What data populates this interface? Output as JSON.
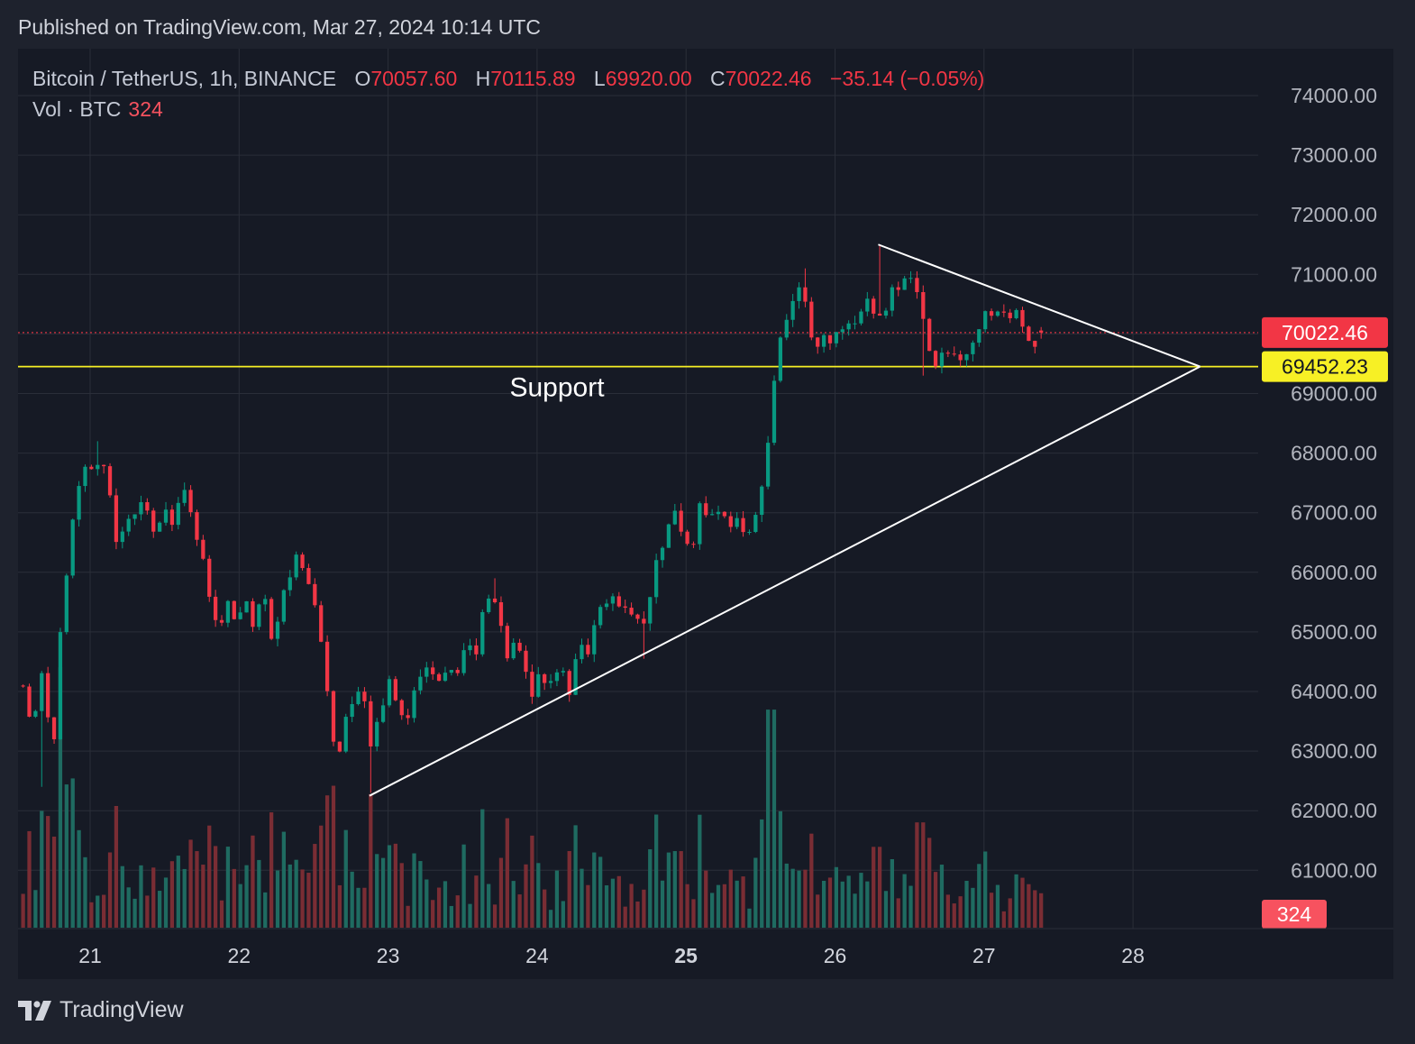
{
  "header": {
    "published_text": "Published on TradingView.com, Mar 27, 2024 10:14 UTC"
  },
  "legend": {
    "symbol": "Bitcoin / TetherUS, 1h, BINANCE",
    "open_label": "O",
    "open": "70057.60",
    "high_label": "H",
    "high": "70115.89",
    "low_label": "L",
    "low": "69920.00",
    "close_label": "C",
    "close": "70022.46",
    "change": "−35.14 (−0.05%)",
    "volume_label": "Vol · BTC",
    "volume": "324"
  },
  "footer": {
    "brand": "TradingView",
    "logo_icon": "tradingview-logo-icon"
  },
  "colors": {
    "background": "#161a25",
    "page": "#1e222d",
    "grid": "#2a2e39",
    "up": "#089981",
    "down": "#f23645",
    "support": "#f7f025",
    "trendline": "#ffffff"
  },
  "chart_data": {
    "type": "candlestick",
    "symbol": "Bitcoin / TetherUS",
    "interval": "1h",
    "exchange": "BINANCE",
    "y_ticks": [
      "74000.00",
      "73000.00",
      "72000.00",
      "71000.00",
      "70000.00",
      "69000.00",
      "68000.00",
      "67000.00",
      "66000.00",
      "65000.00",
      "64000.00",
      "63000.00",
      "62000.00",
      "61000.00"
    ],
    "y_tick_values": [
      74000,
      73000,
      72000,
      71000,
      70000,
      69000,
      68000,
      67000,
      66000,
      65000,
      64000,
      63000,
      62000,
      61000
    ],
    "ylim": [
      60000,
      74500
    ],
    "x_ticks": [
      "21",
      "22",
      "23",
      "24",
      "25",
      "26",
      "27",
      "28"
    ],
    "x_tick_days": [
      21,
      22,
      23,
      24,
      25,
      26,
      27,
      28
    ],
    "bold_x_tick": "25",
    "month": "2024-03",
    "xlim": [
      20.52,
      28.73
    ],
    "last_price": "70022.46",
    "last_price_value": 70022.46,
    "support_price": "69452.23",
    "support_value": 69452.23,
    "support_label": "Support",
    "last_volume": "324",
    "trendlines": [
      {
        "role": "ascending",
        "from": {
          "day": 22.875,
          "price": 62250
        },
        "to": {
          "day": 28.45,
          "price": 69452.23
        }
      },
      {
        "role": "descending",
        "from": {
          "day": 26.29,
          "price": 71500
        },
        "to": {
          "day": 28.45,
          "price": 69452.23
        }
      }
    ],
    "anchors": [
      [
        20.55,
        64100
      ],
      [
        20.62,
        63400
      ],
      [
        20.68,
        64300
      ],
      [
        20.75,
        62900
      ],
      [
        20.8,
        65000
      ],
      [
        20.85,
        66200
      ],
      [
        20.9,
        67300
      ],
      [
        20.95,
        67800
      ],
      [
        21.0,
        67600
      ],
      [
        21.06,
        67900
      ],
      [
        21.12,
        67500
      ],
      [
        21.17,
        66400
      ],
      [
        21.22,
        66800
      ],
      [
        21.3,
        66900
      ],
      [
        21.36,
        67200
      ],
      [
        21.42,
        66700
      ],
      [
        21.5,
        67100
      ],
      [
        21.55,
        66800
      ],
      [
        21.62,
        67400
      ],
      [
        21.68,
        66900
      ],
      [
        21.74,
        66400
      ],
      [
        21.8,
        65600
      ],
      [
        21.86,
        64900
      ],
      [
        21.92,
        65500
      ],
      [
        21.98,
        65000
      ],
      [
        22.04,
        65500
      ],
      [
        22.1,
        65000
      ],
      [
        22.16,
        65700
      ],
      [
        22.22,
        64800
      ],
      [
        22.28,
        65400
      ],
      [
        22.34,
        66000
      ],
      [
        22.4,
        66300
      ],
      [
        22.46,
        65900
      ],
      [
        22.52,
        65300
      ],
      [
        22.58,
        64200
      ],
      [
        22.62,
        63400
      ],
      [
        22.66,
        62800
      ],
      [
        22.72,
        63600
      ],
      [
        22.78,
        63900
      ],
      [
        22.83,
        64000
      ],
      [
        22.88,
        63000
      ],
      [
        22.95,
        63700
      ],
      [
        23.0,
        64200
      ],
      [
        23.06,
        63900
      ],
      [
        23.12,
        63500
      ],
      [
        23.18,
        64100
      ],
      [
        23.25,
        64500
      ],
      [
        23.32,
        64100
      ],
      [
        23.4,
        64500
      ],
      [
        23.46,
        64200
      ],
      [
        23.54,
        64900
      ],
      [
        23.6,
        64700
      ],
      [
        23.66,
        65700
      ],
      [
        23.74,
        65300
      ],
      [
        23.8,
        64600
      ],
      [
        23.86,
        64900
      ],
      [
        23.92,
        64300
      ],
      [
        23.96,
        63900
      ],
      [
        24.02,
        64300
      ],
      [
        24.08,
        64000
      ],
      [
        24.15,
        64400
      ],
      [
        24.22,
        64000
      ],
      [
        24.28,
        64900
      ],
      [
        24.34,
        64700
      ],
      [
        24.4,
        65200
      ],
      [
        24.48,
        65600
      ],
      [
        24.56,
        65500
      ],
      [
        24.64,
        65300
      ],
      [
        24.7,
        65000
      ],
      [
        24.74,
        65500
      ],
      [
        24.8,
        66100
      ],
      [
        24.86,
        66600
      ],
      [
        24.92,
        67000
      ],
      [
        24.98,
        66600
      ],
      [
        25.04,
        66200
      ],
      [
        25.1,
        67200
      ],
      [
        25.16,
        66900
      ],
      [
        25.22,
        67000
      ],
      [
        25.28,
        66800
      ],
      [
        25.34,
        66900
      ],
      [
        25.4,
        66700
      ],
      [
        25.46,
        66900
      ],
      [
        25.52,
        67600
      ],
      [
        25.56,
        68400
      ],
      [
        25.6,
        69300
      ],
      [
        25.64,
        70000
      ],
      [
        25.7,
        70500
      ],
      [
        25.76,
        70900
      ],
      [
        25.82,
        70500
      ],
      [
        25.86,
        69600
      ],
      [
        25.92,
        69900
      ],
      [
        25.98,
        69800
      ],
      [
        26.04,
        70100
      ],
      [
        26.1,
        70300
      ],
      [
        26.16,
        70200
      ],
      [
        26.22,
        70500
      ],
      [
        26.28,
        70400
      ],
      [
        26.32,
        70200
      ],
      [
        26.38,
        70700
      ],
      [
        26.44,
        70800
      ],
      [
        26.5,
        71000
      ],
      [
        26.54,
        70900
      ],
      [
        26.56,
        70700
      ],
      [
        26.58,
        70300
      ],
      [
        26.62,
        69900
      ],
      [
        26.68,
        69500
      ],
      [
        26.72,
        69600
      ],
      [
        26.78,
        69800
      ],
      [
        26.84,
        69600
      ],
      [
        26.9,
        69800
      ],
      [
        26.96,
        70100
      ],
      [
        27.02,
        70400
      ],
      [
        27.06,
        70300
      ],
      [
        27.1,
        70500
      ],
      [
        27.16,
        70300
      ],
      [
        27.22,
        70400
      ],
      [
        27.28,
        70100
      ],
      [
        27.32,
        69650
      ],
      [
        27.36,
        70000
      ],
      [
        27.4,
        70057.6
      ]
    ],
    "volume": {
      "last": 324,
      "spikes": [
        {
          "day": 20.73,
          "value": 1050
        },
        {
          "day": 22.55,
          "value": 960
        },
        {
          "day": 24.95,
          "value": 720
        },
        {
          "day": 25.57,
          "value": 2050
        },
        {
          "day": 26.28,
          "value": 760
        },
        {
          "day": 26.57,
          "value": 990
        }
      ]
    }
  }
}
